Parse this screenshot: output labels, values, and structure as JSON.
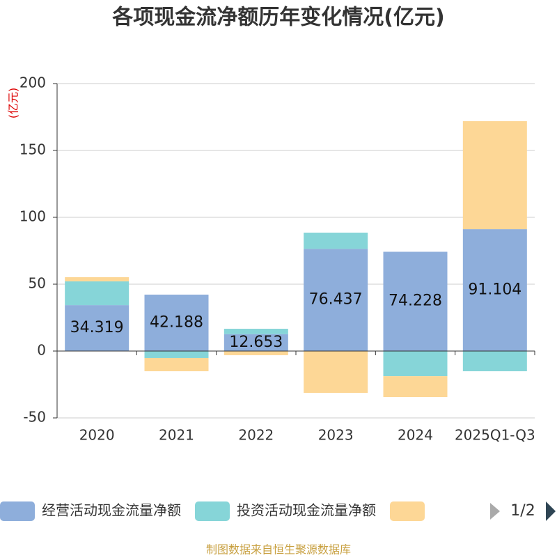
{
  "chart_data": {
    "type": "stacked_bar",
    "title": "各项现金流净额历年变化情况(亿元)",
    "y_label": "(亿元)",
    "categories": [
      "2020",
      "2021",
      "2022",
      "2023",
      "2024",
      "2025Q1-Q3"
    ],
    "series": [
      {
        "name": "经营活动现金流量净额",
        "color": "#8eaedb",
        "values": [
          34.319,
          42.188,
          12.653,
          76.437,
          74.228,
          91.104
        ],
        "labels": true
      },
      {
        "name": "投资活动现金流量净额",
        "color": "#86d5d8",
        "values": [
          17.8,
          -5.2,
          4.0,
          12.1,
          -18.8,
          -15.1
        ]
      },
      {
        "color": "#fdd796",
        "values": [
          3.1,
          -9.9,
          -3.1,
          -31.3,
          -15.6,
          80.8
        ]
      }
    ],
    "ylim": [
      -50,
      200
    ],
    "yticks": [
      -50,
      0,
      50,
      100,
      150,
      200
    ],
    "grid": true,
    "legend_page": "1/2",
    "source": "制图数据来自恒生聚源数据库"
  }
}
